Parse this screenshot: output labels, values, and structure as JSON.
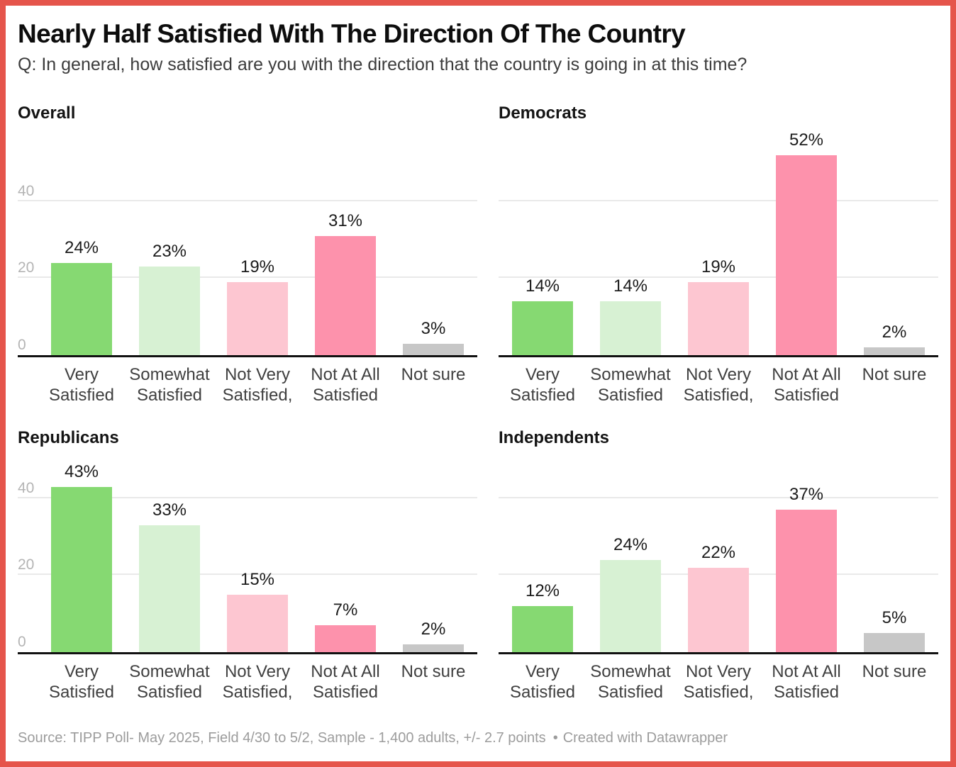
{
  "chart_data": {
    "type": "bar",
    "title": "Nearly Half Satisfied With The Direction Of The Country",
    "subtitle": "Q: In general, how satisfied are you with the direction that the country is going in at this time?",
    "categories": [
      "Very Satisfied",
      "Somewhat Satisfied",
      "Not Very Satisfied,",
      "Not At All Satisfied",
      "Not sure"
    ],
    "value_suffix": "%",
    "ylim": [
      0,
      55
    ],
    "gridline_values": [
      20,
      40
    ],
    "legend_position": "none",
    "panels": [
      {
        "name": "Overall",
        "values": [
          24,
          23,
          19,
          31,
          3
        ],
        "y_tick_labels": [
          {
            "value": 0,
            "label": "0"
          },
          {
            "value": 20,
            "label": "20"
          },
          {
            "value": 40,
            "label": "40"
          }
        ]
      },
      {
        "name": "Democrats",
        "values": [
          14,
          14,
          19,
          52,
          2
        ],
        "y_tick_labels": []
      },
      {
        "name": "Republicans",
        "values": [
          43,
          33,
          15,
          7,
          2
        ],
        "y_tick_labels": [
          {
            "value": 0,
            "label": "0"
          },
          {
            "value": 20,
            "label": "20"
          },
          {
            "value": 40,
            "label": "40"
          }
        ]
      },
      {
        "name": "Independents",
        "values": [
          12,
          24,
          22,
          37,
          5
        ],
        "y_tick_labels": []
      }
    ],
    "colors": {
      "bars": [
        "#86d972",
        "#d7f1d3",
        "#fdc6d1",
        "#fd92ac",
        "#c7c7c7"
      ],
      "border": "#e5554b",
      "gridline": "#e9e9e9",
      "baseline": "#111111",
      "tick_label": "#b4b4b4",
      "value_label": "#1c1c1c",
      "category_label": "#404040"
    },
    "footer": {
      "source": "Source: TIPP Poll- May 2025, Field 4/30 to 5/2, Sample - 1,400 adults, +/- 2.7 points",
      "separator": "•",
      "attribution": "Created with Datawrapper"
    }
  }
}
